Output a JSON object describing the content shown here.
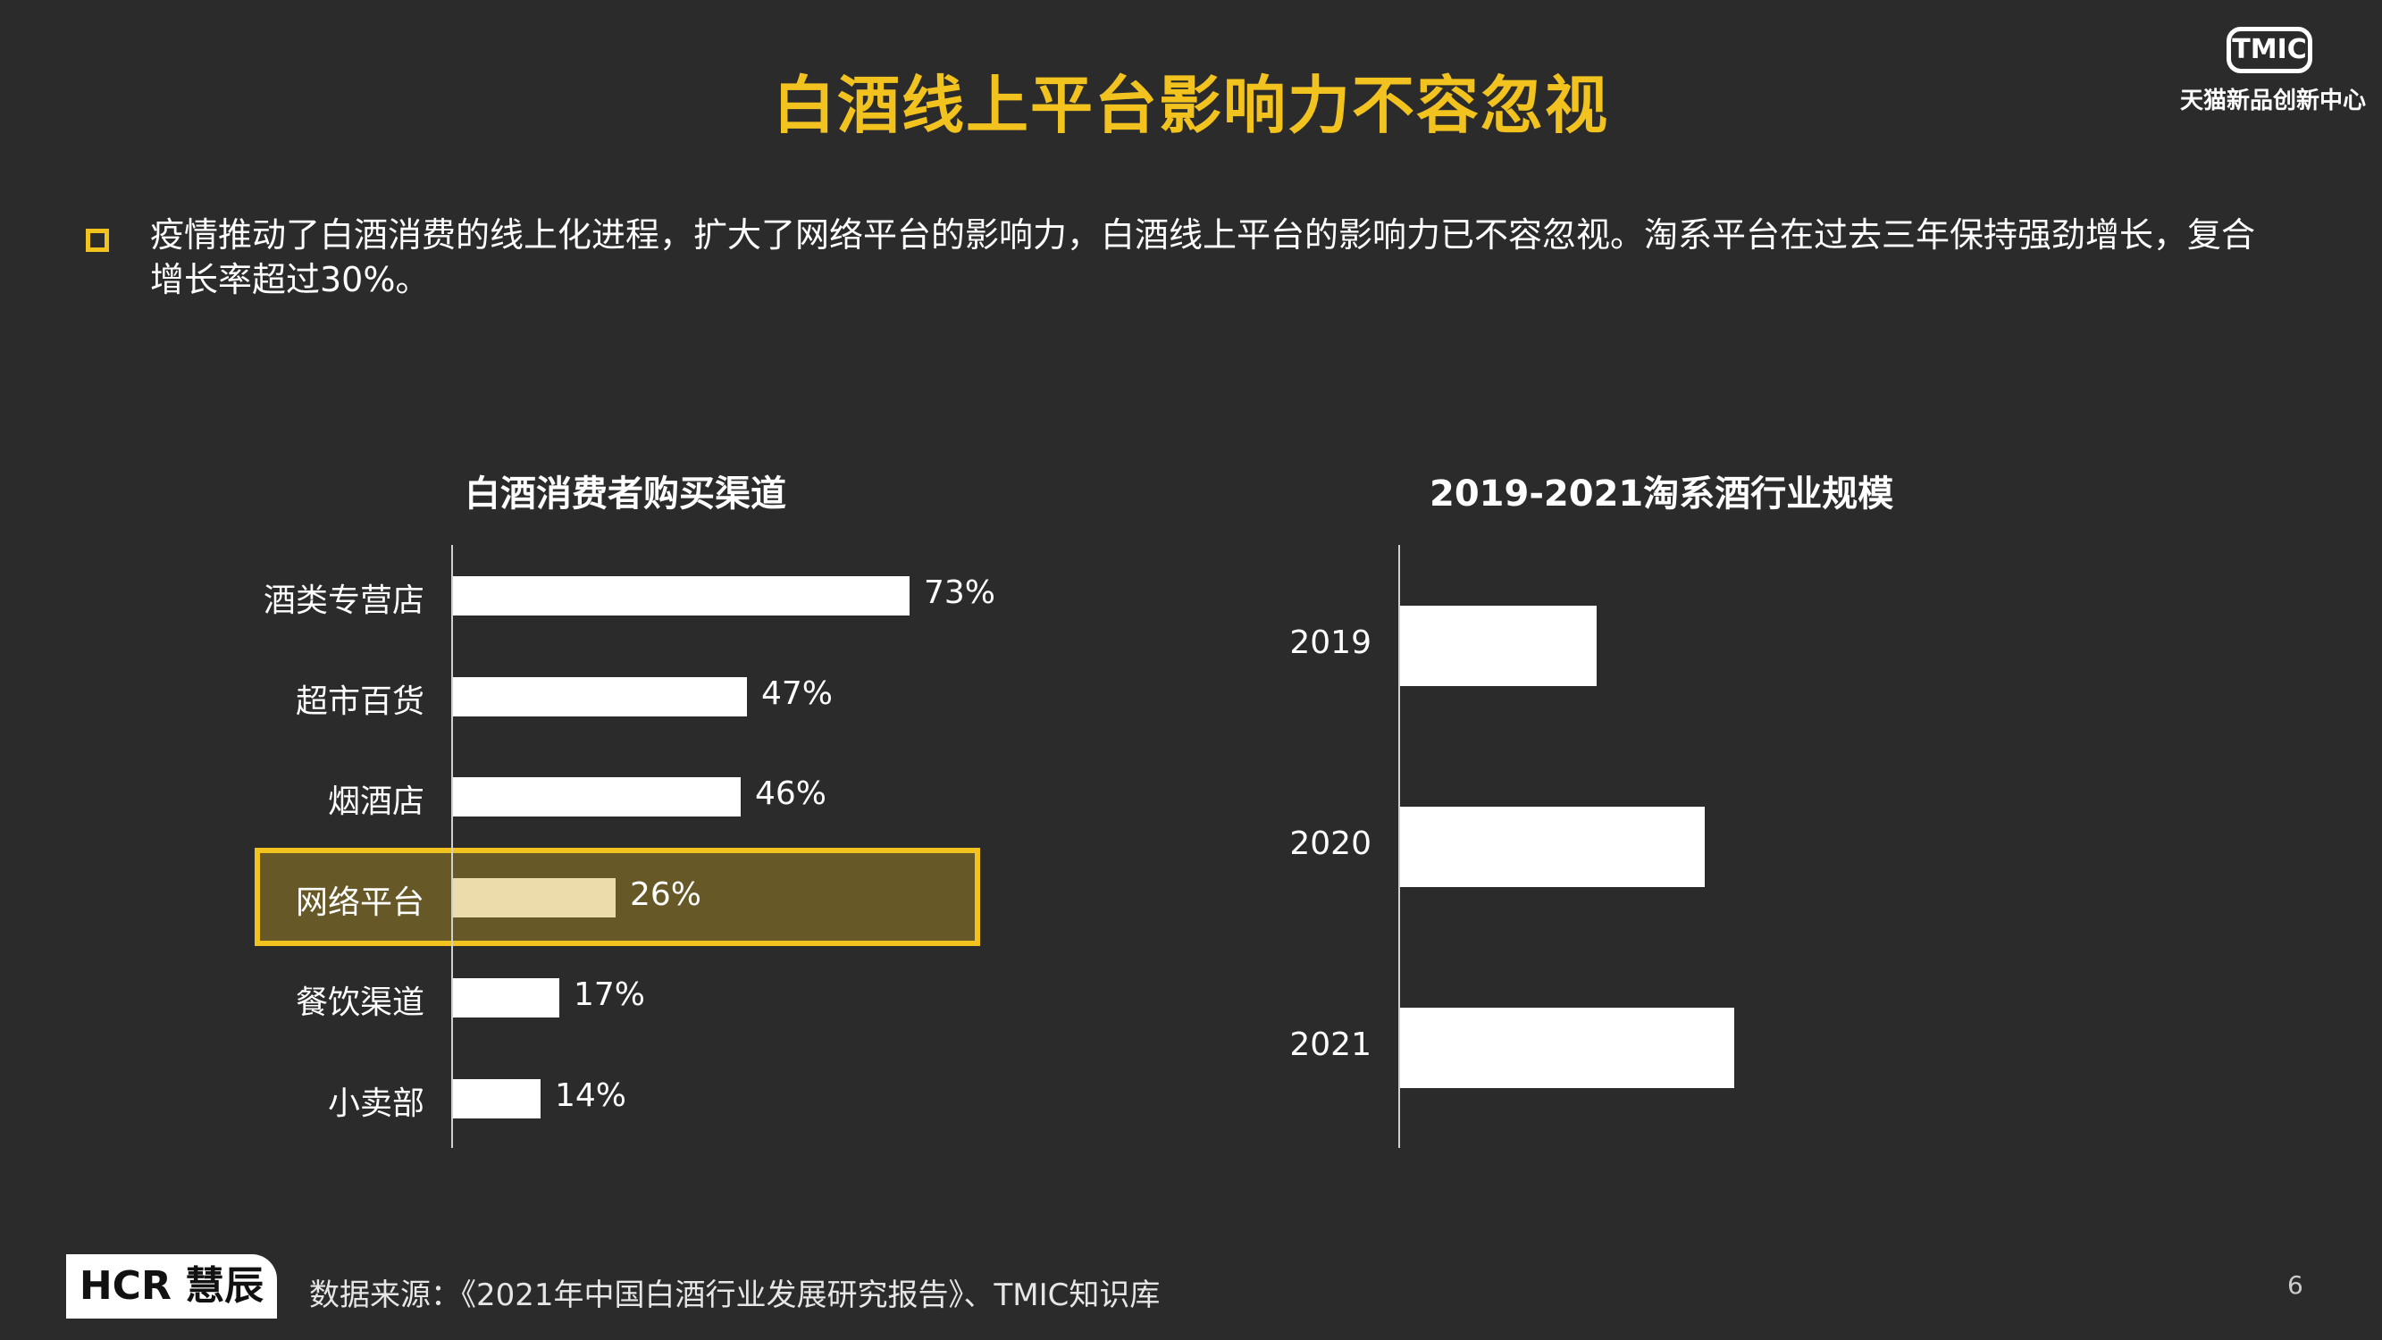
{
  "title": "白酒线上平台影响力不容忽视",
  "brand": {
    "tmic_mark": "TMIC",
    "tmic_name": "天猫新品创新中心",
    "hcr": "HCR 慧辰"
  },
  "bullet": "疫情推动了白酒消费的线上化进程，扩大了网络平台的影响力，白酒线上平台的影响力已不容忽视。淘系平台在过去三年保持强劲增长，复合增长率超过30%。",
  "colors": {
    "background": "#2b2b2b",
    "accent": "#f2c21f",
    "bar": "#ffffff",
    "highlight_bar": "#ecdcab"
  },
  "chart_data": [
    {
      "type": "bar",
      "orientation": "horizontal",
      "title": "白酒消费者购买渠道",
      "categories": [
        "酒类专营店",
        "超市百货",
        "烟酒店",
        "网络平台",
        "餐饮渠道",
        "小卖部"
      ],
      "values": [
        73,
        47,
        46,
        26,
        17,
        14
      ],
      "value_labels": [
        "73%",
        "47%",
        "46%",
        "26%",
        "17%",
        "14%"
      ],
      "highlight": "网络平台",
      "xlim": [
        0,
        100
      ]
    },
    {
      "type": "bar",
      "orientation": "horizontal",
      "title": "2019-2021淘系酒行业规模",
      "categories": [
        "2019",
        "2020",
        "2021"
      ],
      "values": [
        1.0,
        1.55,
        1.7
      ]
    }
  ],
  "footer": {
    "source": "数据来源：《2021年中国白酒行业发展研究报告》、TMIC知识库",
    "page": "6"
  }
}
